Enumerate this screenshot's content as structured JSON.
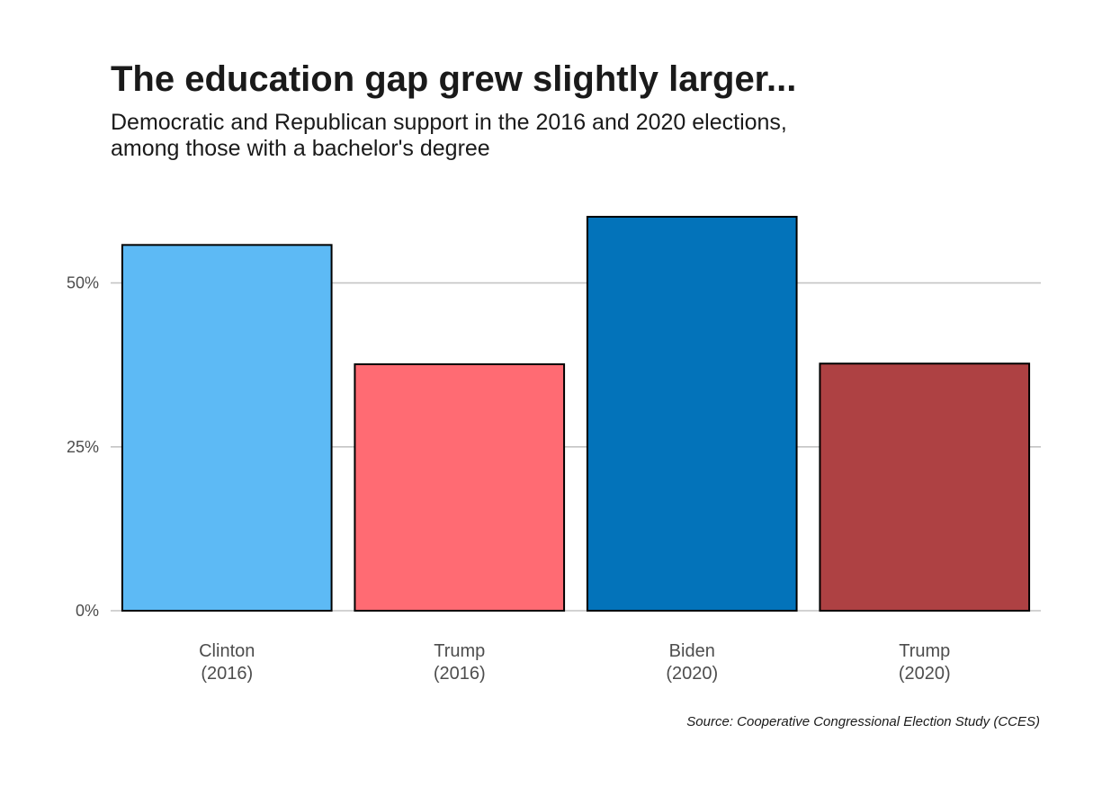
{
  "title": "The education gap grew slightly larger...",
  "subtitle_lines": [
    "Democratic and Republican support in the 2016 and 2020 elections,",
    "among those with a bachelor's degree"
  ],
  "caption": "Source: Cooperative Congressional Election Study (CCES)",
  "chart_data": {
    "type": "bar",
    "categories": [
      [
        "Clinton",
        "(2016)"
      ],
      [
        "Trump",
        "(2016)"
      ],
      [
        "Biden",
        "(2020)"
      ],
      [
        "Trump",
        "(2020)"
      ]
    ],
    "values": [
      55.8,
      37.6,
      60.1,
      37.7
    ],
    "colors": [
      "#5dbaf5",
      "#ff6b73",
      "#0373ba",
      "#ae4143"
    ],
    "ylim": [
      0,
      60.1
    ],
    "y_ticks": [
      0,
      25,
      50
    ],
    "y_tick_labels": [
      "0%",
      "25%",
      "50%"
    ],
    "grid": "horizontal major gridlines",
    "legend": "none",
    "xlabel": "",
    "ylabel": ""
  }
}
